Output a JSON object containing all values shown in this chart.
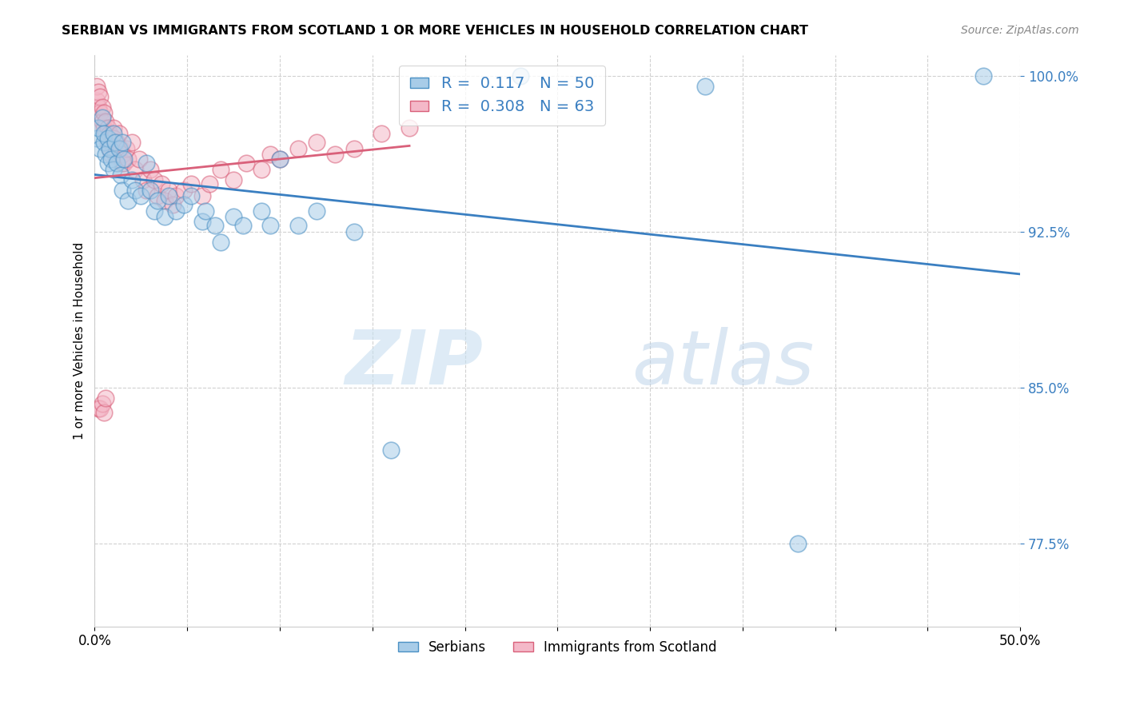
{
  "title": "SERBIAN VS IMMIGRANTS FROM SCOTLAND 1 OR MORE VEHICLES IN HOUSEHOLD CORRELATION CHART",
  "source": "Source: ZipAtlas.com",
  "ylabel": "1 or more Vehicles in Household",
  "xlim": [
    0.0,
    0.5
  ],
  "ylim": [
    0.735,
    1.01
  ],
  "xticks": [
    0.0,
    0.05,
    0.1,
    0.15,
    0.2,
    0.25,
    0.3,
    0.35,
    0.4,
    0.45,
    0.5
  ],
  "yticks": [
    0.775,
    0.85,
    0.925,
    1.0
  ],
  "yticklabels": [
    "77.5%",
    "85.0%",
    "92.5%",
    "100.0%"
  ],
  "blue_R": 0.117,
  "blue_N": 50,
  "pink_R": 0.308,
  "pink_N": 63,
  "blue_label": "Serbians",
  "pink_label": "Immigrants from Scotland",
  "blue_color": "#a8cce8",
  "pink_color": "#f4b8c8",
  "blue_edge_color": "#4a90c4",
  "pink_edge_color": "#d9607a",
  "blue_line_color": "#3a7fc1",
  "pink_line_color": "#d9607a",
  "axis_color": "#3a7fc1",
  "blue_scatter_x": [
    0.001,
    0.002,
    0.003,
    0.004,
    0.005,
    0.005,
    0.006,
    0.007,
    0.007,
    0.008,
    0.009,
    0.01,
    0.01,
    0.011,
    0.012,
    0.013,
    0.014,
    0.015,
    0.015,
    0.016,
    0.018,
    0.02,
    0.022,
    0.025,
    0.028,
    0.03,
    0.032,
    0.034,
    0.038,
    0.04,
    0.044,
    0.048,
    0.052,
    0.058,
    0.06,
    0.065,
    0.068,
    0.075,
    0.08,
    0.09,
    0.095,
    0.1,
    0.11,
    0.12,
    0.14,
    0.16,
    0.23,
    0.33,
    0.38,
    0.48
  ],
  "blue_scatter_y": [
    0.97,
    0.975,
    0.965,
    0.98,
    0.968,
    0.972,
    0.962,
    0.97,
    0.958,
    0.965,
    0.96,
    0.972,
    0.955,
    0.968,
    0.958,
    0.965,
    0.952,
    0.968,
    0.945,
    0.96,
    0.94,
    0.95,
    0.945,
    0.942,
    0.958,
    0.945,
    0.935,
    0.94,
    0.932,
    0.942,
    0.935,
    0.938,
    0.942,
    0.93,
    0.935,
    0.928,
    0.92,
    0.932,
    0.928,
    0.935,
    0.928,
    0.96,
    0.928,
    0.935,
    0.925,
    0.82,
    1.0,
    0.995,
    0.775,
    1.0
  ],
  "pink_scatter_x": [
    0.001,
    0.001,
    0.002,
    0.002,
    0.003,
    0.003,
    0.004,
    0.004,
    0.005,
    0.005,
    0.006,
    0.006,
    0.007,
    0.007,
    0.008,
    0.008,
    0.009,
    0.009,
    0.01,
    0.01,
    0.011,
    0.012,
    0.013,
    0.014,
    0.015,
    0.015,
    0.016,
    0.017,
    0.018,
    0.02,
    0.022,
    0.024,
    0.026,
    0.028,
    0.03,
    0.032,
    0.034,
    0.036,
    0.038,
    0.04,
    0.042,
    0.044,
    0.048,
    0.052,
    0.058,
    0.062,
    0.068,
    0.075,
    0.082,
    0.09,
    0.095,
    0.1,
    0.11,
    0.12,
    0.13,
    0.14,
    0.155,
    0.17,
    0.002,
    0.003,
    0.004,
    0.005,
    0.006
  ],
  "pink_scatter_y": [
    0.988,
    0.995,
    0.985,
    0.992,
    0.982,
    0.99,
    0.978,
    0.985,
    0.975,
    0.982,
    0.972,
    0.978,
    0.975,
    0.968,
    0.972,
    0.965,
    0.968,
    0.962,
    0.975,
    0.97,
    0.962,
    0.968,
    0.972,
    0.965,
    0.958,
    0.962,
    0.958,
    0.965,
    0.96,
    0.968,
    0.955,
    0.96,
    0.95,
    0.945,
    0.955,
    0.95,
    0.942,
    0.948,
    0.94,
    0.945,
    0.938,
    0.942,
    0.945,
    0.948,
    0.942,
    0.948,
    0.955,
    0.95,
    0.958,
    0.955,
    0.962,
    0.96,
    0.965,
    0.968,
    0.962,
    0.965,
    0.972,
    0.975,
    0.84,
    0.84,
    0.842,
    0.838,
    0.845
  ],
  "watermark_zip": "ZIP",
  "watermark_atlas": "atlas"
}
